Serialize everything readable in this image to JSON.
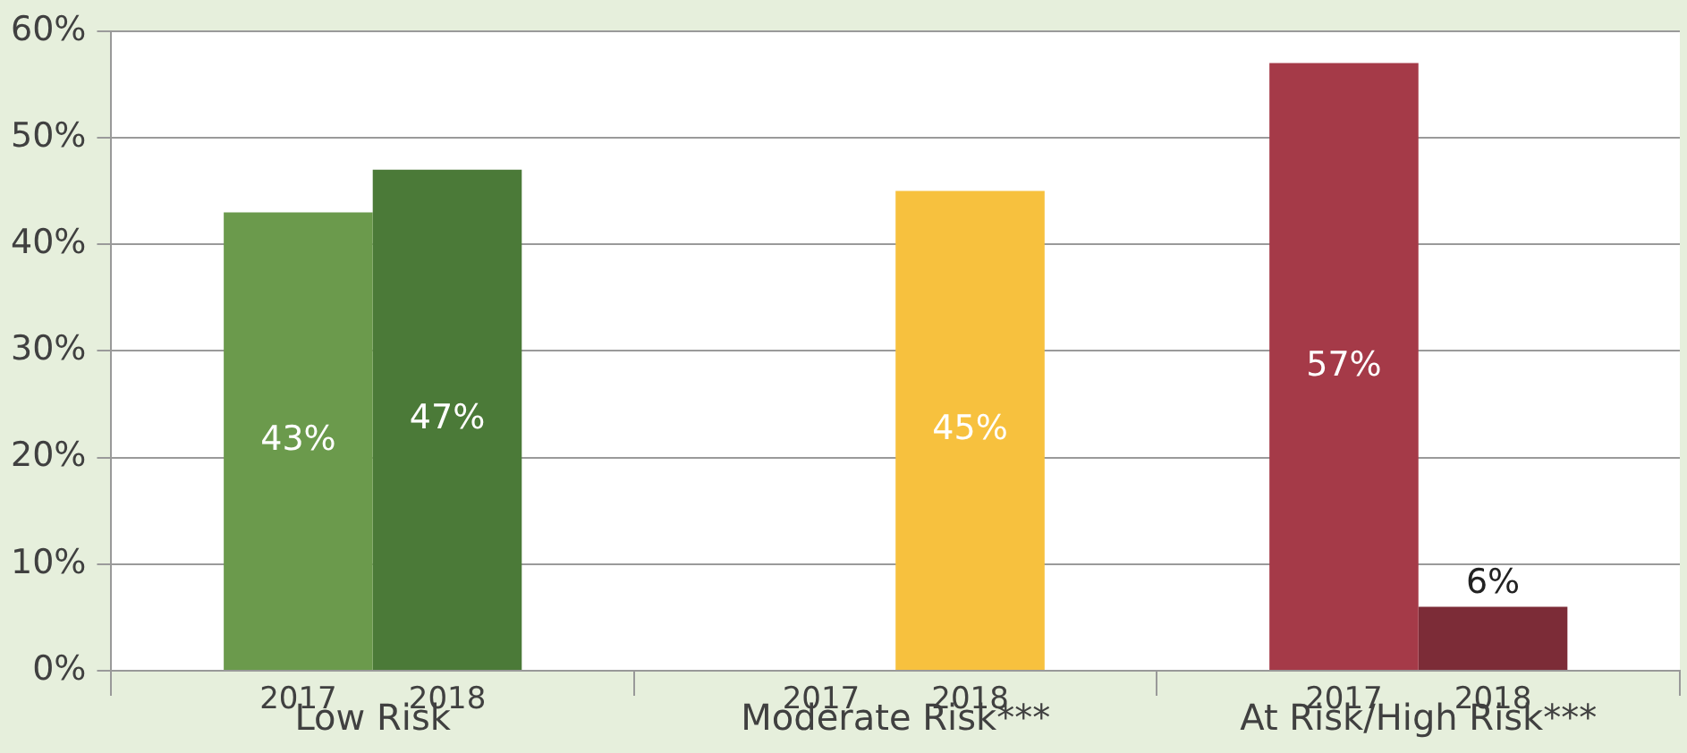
{
  "chart_data": {
    "type": "bar",
    "categories": [
      "Low Risk",
      "Moderate Risk***",
      "At Risk/High Risk***"
    ],
    "series": [
      {
        "name": "2017",
        "colors": [
          "#6b9a4c",
          null,
          "#a53a48"
        ],
        "values": [
          43,
          null,
          57
        ],
        "value_labels": [
          "43%",
          null,
          "57%"
        ]
      },
      {
        "name": "2018",
        "colors": [
          "#4b7a38",
          "#f7c13e",
          "#7c2c37"
        ],
        "values": [
          47,
          45,
          6
        ],
        "value_labels": [
          "47%",
          "45%",
          "6%"
        ]
      }
    ],
    "ylim": [
      0,
      60
    ],
    "yticks": [
      {
        "value": 0,
        "label": "0%"
      },
      {
        "value": 10,
        "label": "10%"
      },
      {
        "value": 20,
        "label": "20%"
      },
      {
        "value": 30,
        "label": "30%"
      },
      {
        "value": 40,
        "label": "40%"
      },
      {
        "value": 50,
        "label": "50%"
      },
      {
        "value": 60,
        "label": "60%"
      }
    ],
    "grid": "y",
    "legend": false
  }
}
